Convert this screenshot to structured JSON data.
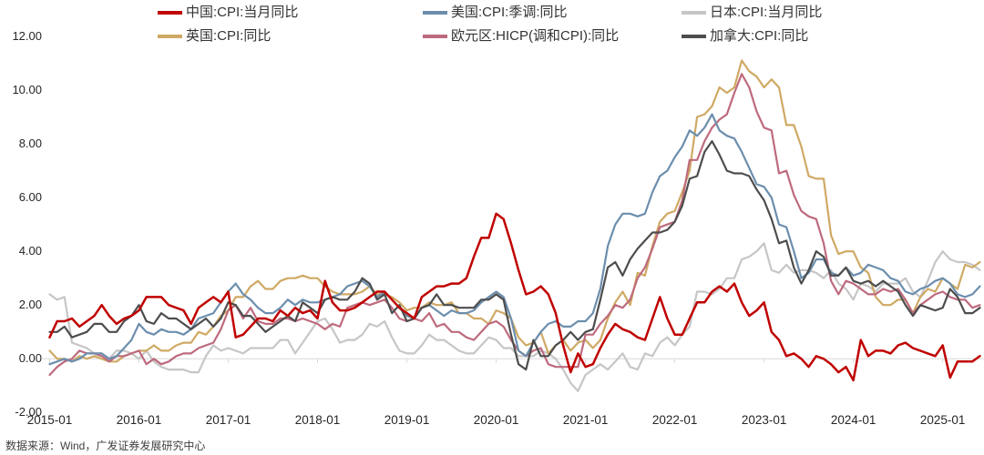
{
  "footer": {
    "source_text": "数据来源：Wind，广发证券发展研究中心"
  },
  "axes": {
    "y_ticks": [
      {
        "label": "12.00",
        "value": 12
      },
      {
        "label": "10.00",
        "value": 10
      },
      {
        "label": "8.00",
        "value": 8
      },
      {
        "label": "6.00",
        "value": 6
      },
      {
        "label": "4.00",
        "value": 4
      },
      {
        "label": "2.00",
        "value": 2
      },
      {
        "label": "0.00",
        "value": 0
      },
      {
        "label": "-2.00",
        "value": -2
      }
    ]
  },
  "chart_data": {
    "type": "line",
    "title": "",
    "xlabel": "",
    "ylabel": "",
    "x_start": "2015-01",
    "x_end": "2025-06",
    "x_freq": "monthly",
    "ylim": [
      -2,
      12
    ],
    "grid": "zero-line-only",
    "legend_position": "top",
    "zero_line_color": "#D9D9D9",
    "x_tick_labels": [
      "2015-01",
      "2016-01",
      "2017-01",
      "2018-01",
      "2019-01",
      "2020-01",
      "2021-01",
      "2022-01",
      "2023-01",
      "2024-01",
      "2025-01"
    ],
    "series": [
      {
        "name": "中国:CPI:当月同比",
        "color": "#C00000",
        "values": [
          0.8,
          1.4,
          1.4,
          1.5,
          1.2,
          1.4,
          1.6,
          2.0,
          1.6,
          1.3,
          1.5,
          1.6,
          1.8,
          2.3,
          2.3,
          2.3,
          2.0,
          1.9,
          1.8,
          1.3,
          1.9,
          2.1,
          2.3,
          2.1,
          2.5,
          0.8,
          0.9,
          1.2,
          1.5,
          1.5,
          1.4,
          1.8,
          1.6,
          1.9,
          1.7,
          1.8,
          1.5,
          2.9,
          2.1,
          1.8,
          1.8,
          1.9,
          2.1,
          2.3,
          2.5,
          2.5,
          2.2,
          1.9,
          1.7,
          1.5,
          2.3,
          2.5,
          2.7,
          2.7,
          2.8,
          2.8,
          3.0,
          3.8,
          4.5,
          4.5,
          5.4,
          5.2,
          4.3,
          3.3,
          2.4,
          2.5,
          2.7,
          2.4,
          1.7,
          0.5,
          -0.5,
          0.2,
          -0.3,
          -0.2,
          0.4,
          0.9,
          1.3,
          1.1,
          1.0,
          0.8,
          0.7,
          1.5,
          2.3,
          1.5,
          0.9,
          0.9,
          1.5,
          2.1,
          2.1,
          2.5,
          2.7,
          2.5,
          2.8,
          2.1,
          1.6,
          1.8,
          2.1,
          1.0,
          0.7,
          0.1,
          0.2,
          0.0,
          -0.3,
          0.1,
          0.0,
          -0.2,
          -0.5,
          -0.3,
          -0.8,
          0.7,
          0.1,
          0.3,
          0.3,
          0.2,
          0.5,
          0.6,
          0.4,
          0.3,
          0.2,
          0.1,
          0.5,
          -0.7,
          -0.1,
          -0.1,
          -0.1,
          0.1
        ]
      },
      {
        "name": "美国:CPI:季调:同比",
        "color": "#6C8EAD",
        "values": [
          -0.2,
          -0.1,
          0.0,
          -0.1,
          0.0,
          0.2,
          0.2,
          0.2,
          0.0,
          0.1,
          0.4,
          0.7,
          1.3,
          1.0,
          0.9,
          1.1,
          1.0,
          1.0,
          0.9,
          1.1,
          1.5,
          1.6,
          1.7,
          2.1,
          2.5,
          2.8,
          2.4,
          2.2,
          1.9,
          1.7,
          1.7,
          1.9,
          2.2,
          2.0,
          2.2,
          2.1,
          2.1,
          2.2,
          2.3,
          2.4,
          2.7,
          2.8,
          2.9,
          2.7,
          2.3,
          2.5,
          2.2,
          1.9,
          1.6,
          1.5,
          1.9,
          2.0,
          1.8,
          1.6,
          1.8,
          1.7,
          1.7,
          1.8,
          2.1,
          2.3,
          2.5,
          2.3,
          1.5,
          0.3,
          0.1,
          0.6,
          1.0,
          1.3,
          1.4,
          1.2,
          1.2,
          1.4,
          1.4,
          1.7,
          2.6,
          4.2,
          5.0,
          5.4,
          5.4,
          5.3,
          5.4,
          6.2,
          6.8,
          7.0,
          7.5,
          7.9,
          8.5,
          8.3,
          8.6,
          9.1,
          8.5,
          8.3,
          8.2,
          7.7,
          7.1,
          6.5,
          6.4,
          6.0,
          5.0,
          4.9,
          4.0,
          3.0,
          3.2,
          3.7,
          3.7,
          3.2,
          3.1,
          3.4,
          3.1,
          3.2,
          3.5,
          3.4,
          3.3,
          3.0,
          2.9,
          2.5,
          2.4,
          2.6,
          2.7,
          2.9,
          3.0,
          2.8,
          2.4,
          2.3,
          2.4,
          2.7
        ]
      },
      {
        "name": "日本:CPI:当月同比",
        "color": "#C6C6C6",
        "values": [
          2.4,
          2.2,
          2.3,
          0.6,
          0.5,
          0.4,
          0.2,
          0.2,
          0.0,
          0.3,
          0.3,
          0.2,
          0.0,
          0.3,
          -0.1,
          -0.3,
          -0.4,
          -0.4,
          -0.4,
          -0.5,
          -0.5,
          0.1,
          0.5,
          0.3,
          0.4,
          0.3,
          0.2,
          0.4,
          0.4,
          0.4,
          0.4,
          0.7,
          0.7,
          0.2,
          0.6,
          1.0,
          1.4,
          1.5,
          1.1,
          0.6,
          0.7,
          0.7,
          0.9,
          1.3,
          1.2,
          1.4,
          0.8,
          0.3,
          0.2,
          0.2,
          0.5,
          0.9,
          0.7,
          0.7,
          0.5,
          0.3,
          0.2,
          0.2,
          0.5,
          0.8,
          0.7,
          0.4,
          0.4,
          0.1,
          0.1,
          0.1,
          0.3,
          0.2,
          0.0,
          -0.4,
          -0.9,
          -1.2,
          -0.6,
          -0.4,
          -0.2,
          -0.4,
          -0.1,
          0.2,
          -0.3,
          -0.4,
          0.2,
          0.1,
          0.6,
          0.8,
          0.5,
          0.9,
          1.2,
          2.5,
          2.5,
          2.4,
          2.6,
          3.0,
          3.0,
          3.7,
          3.8,
          4.0,
          4.3,
          3.3,
          3.2,
          3.5,
          3.2,
          3.3,
          3.3,
          3.2,
          3.0,
          3.3,
          2.8,
          2.6,
          2.2,
          2.8,
          2.7,
          2.5,
          2.8,
          2.8,
          2.8,
          3.0,
          2.5,
          2.3,
          2.9,
          3.6,
          4.0,
          3.7,
          3.6,
          3.6,
          3.5,
          3.3
        ]
      },
      {
        "name": "英国:CPI:同比",
        "color": "#CFA964",
        "values": [
          0.3,
          0.0,
          0.0,
          -0.1,
          0.1,
          0.0,
          0.1,
          0.0,
          -0.1,
          -0.1,
          0.1,
          0.2,
          0.3,
          0.3,
          0.5,
          0.3,
          0.3,
          0.5,
          0.6,
          0.6,
          1.0,
          0.9,
          1.2,
          1.6,
          1.8,
          2.3,
          2.3,
          2.7,
          2.9,
          2.6,
          2.6,
          2.9,
          3.0,
          3.0,
          3.1,
          3.0,
          3.0,
          2.7,
          2.5,
          2.4,
          2.4,
          2.4,
          2.5,
          2.7,
          2.4,
          2.4,
          2.3,
          2.1,
          1.8,
          1.9,
          1.9,
          2.1,
          2.0,
          2.0,
          2.1,
          1.7,
          1.7,
          1.5,
          1.5,
          1.3,
          1.8,
          1.7,
          1.5,
          0.8,
          0.5,
          0.6,
          1.0,
          0.2,
          0.5,
          0.7,
          0.3,
          0.6,
          0.7,
          0.4,
          0.7,
          1.5,
          2.1,
          2.5,
          2.0,
          3.2,
          3.1,
          4.2,
          5.1,
          5.4,
          5.5,
          6.2,
          7.0,
          9.0,
          9.1,
          9.4,
          10.1,
          9.9,
          10.1,
          11.1,
          10.7,
          10.5,
          10.1,
          10.4,
          10.1,
          8.7,
          8.7,
          7.9,
          6.8,
          6.7,
          6.7,
          4.6,
          3.9,
          4.0,
          4.0,
          3.4,
          3.2,
          2.3,
          2.0,
          2.0,
          2.2,
          2.2,
          1.7,
          2.3,
          2.6,
          2.5,
          3.0,
          2.8,
          2.6,
          3.5,
          3.4,
          3.6
        ]
      },
      {
        "name": "欧元区:HICP(调和CPI):同比",
        "color": "#BE6A7D",
        "values": [
          -0.6,
          -0.3,
          -0.1,
          0.0,
          0.3,
          0.2,
          0.2,
          0.1,
          -0.1,
          0.1,
          0.1,
          0.2,
          0.3,
          -0.2,
          0.0,
          -0.2,
          -0.1,
          0.1,
          0.2,
          0.2,
          0.4,
          0.5,
          0.6,
          1.1,
          1.8,
          2.0,
          1.5,
          1.9,
          1.4,
          1.3,
          1.3,
          1.5,
          1.5,
          1.4,
          1.5,
          1.4,
          1.3,
          1.1,
          1.3,
          1.2,
          1.9,
          2.0,
          2.1,
          2.0,
          2.1,
          2.2,
          1.9,
          1.5,
          1.4,
          1.5,
          1.4,
          1.7,
          1.2,
          1.3,
          1.0,
          1.0,
          0.8,
          0.7,
          1.0,
          1.3,
          1.4,
          1.2,
          0.7,
          0.3,
          0.1,
          0.3,
          0.4,
          -0.2,
          -0.3,
          -0.3,
          -0.3,
          -0.3,
          0.9,
          0.9,
          1.3,
          1.6,
          2.0,
          1.9,
          2.2,
          3.0,
          3.4,
          4.1,
          4.9,
          5.0,
          5.1,
          5.9,
          7.4,
          7.4,
          8.1,
          8.6,
          8.9,
          9.1,
          9.9,
          10.6,
          10.1,
          9.2,
          8.6,
          8.5,
          6.9,
          7.0,
          6.1,
          5.5,
          5.3,
          5.2,
          4.3,
          2.9,
          2.4,
          2.9,
          2.8,
          2.6,
          2.4,
          2.4,
          2.6,
          2.5,
          2.6,
          2.2,
          1.7,
          2.0,
          2.2,
          2.4,
          2.5,
          2.3,
          2.2,
          2.2,
          1.9,
          2.0
        ]
      },
      {
        "name": "加拿大:CPI:同比",
        "color": "#4D4D4D",
        "values": [
          1.0,
          1.0,
          1.2,
          0.8,
          0.9,
          1.0,
          1.3,
          1.3,
          1.0,
          1.0,
          1.4,
          1.6,
          2.0,
          1.4,
          1.3,
          1.7,
          1.5,
          1.5,
          1.3,
          1.1,
          1.3,
          1.5,
          1.2,
          1.5,
          2.1,
          2.0,
          1.6,
          1.6,
          1.3,
          1.0,
          1.2,
          1.4,
          1.6,
          1.4,
          2.1,
          1.9,
          1.7,
          2.2,
          2.3,
          2.2,
          2.2,
          2.5,
          3.0,
          2.8,
          2.2,
          2.4,
          1.7,
          2.0,
          1.4,
          1.5,
          1.9,
          2.0,
          2.4,
          2.0,
          2.0,
          1.9,
          1.9,
          1.9,
          2.2,
          2.2,
          2.4,
          2.2,
          0.9,
          -0.2,
          -0.4,
          0.7,
          0.1,
          0.1,
          0.5,
          0.7,
          1.0,
          0.7,
          1.0,
          1.1,
          2.2,
          3.4,
          3.6,
          3.1,
          3.7,
          4.1,
          4.4,
          4.7,
          4.7,
          4.8,
          5.1,
          5.7,
          6.7,
          6.8,
          7.7,
          8.1,
          7.6,
          7.0,
          6.9,
          6.9,
          6.8,
          6.3,
          5.9,
          5.2,
          4.3,
          4.4,
          3.4,
          2.8,
          3.3,
          4.0,
          3.8,
          3.1,
          3.1,
          3.4,
          2.9,
          2.8,
          2.9,
          2.7,
          2.9,
          2.7,
          2.5,
          2.0,
          1.6,
          2.0,
          1.9,
          1.8,
          1.9,
          2.6,
          2.3,
          1.7,
          1.7,
          1.9
        ]
      }
    ]
  }
}
